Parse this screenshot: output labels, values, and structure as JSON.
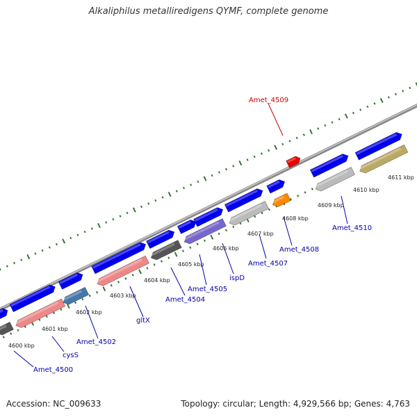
{
  "title": "Alkaliphilus metalliredigens QYMF, complete genome",
  "accession_text": "Accession: NC_009633",
  "topology_text": "Topology: circular; Length: 4,929,566 bp; Genes: 4,763",
  "colors": {
    "backbone": "#999999",
    "forward_gene": "#0000ee",
    "reverse_gene_grey": "#bbbbbb",
    "reverse_gene_dark": "#555555",
    "reverse_gene_pink": "#ee8888",
    "reverse_gene_steel": "#4477aa",
    "reverse_gene_purple": "#7766cc",
    "reverse_gene_olive": "#bbaa66",
    "reverse_gene_orange": "#ff8800",
    "highlight_gene": "#ee0000",
    "ticks": "#337733",
    "label_blue": "#0000aa",
    "label_red": "#cc0000"
  },
  "scale_ticks": [
    "4600 kbp",
    "4601 kbp",
    "4602 kbp",
    "4603 kbp",
    "4604 kbp",
    "4605 kbp",
    "4606 kbp",
    "4607 kbp",
    "4608 kbp",
    "4609 kbp",
    "4610 kbp",
    "4611 kbp"
  ],
  "gene_labels": [
    {
      "name": "Amet_4500",
      "color": "#0000aa"
    },
    {
      "name": "cysS",
      "color": "#0000aa"
    },
    {
      "name": "Amet_4502",
      "color": "#0000aa"
    },
    {
      "name": "gltX",
      "color": "#0000aa"
    },
    {
      "name": "Amet_4504",
      "color": "#0000aa"
    },
    {
      "name": "Amet_4505",
      "color": "#0000aa"
    },
    {
      "name": "ispD",
      "color": "#0000aa"
    },
    {
      "name": "Amet_4507",
      "color": "#0000aa"
    },
    {
      "name": "Amet_4508",
      "color": "#0000aa"
    },
    {
      "name": "Amet_4509",
      "color": "#cc0000"
    },
    {
      "name": "Amet_4510",
      "color": "#0000aa"
    }
  ]
}
